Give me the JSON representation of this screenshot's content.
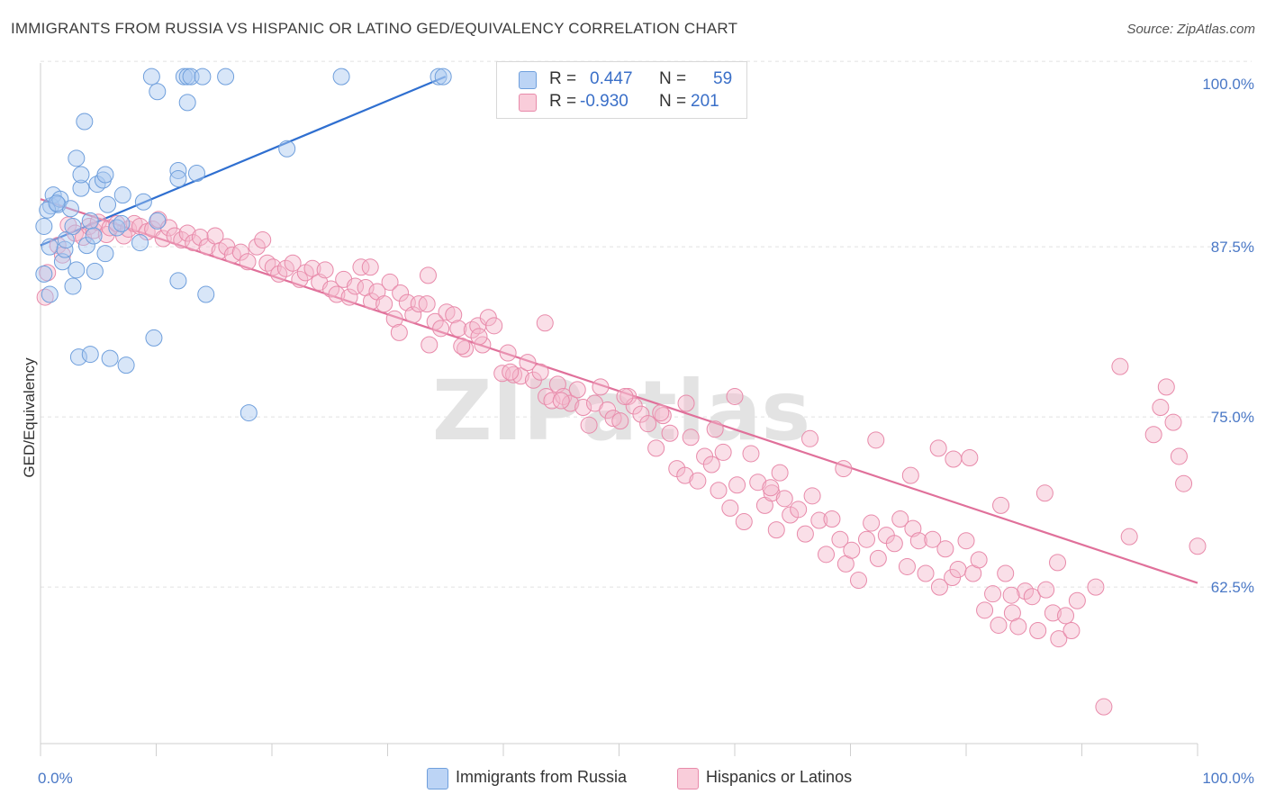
{
  "title": "IMMIGRANTS FROM RUSSIA VS HISPANIC OR LATINO GED/EQUIVALENCY CORRELATION CHART",
  "source": "Source: ZipAtlas.com",
  "watermark": "ZIPatlas",
  "legend": {
    "rows": [
      {
        "r_label": "R =",
        "r_value": "0.447",
        "n_label": "N =",
        "n_value": "59",
        "color": "#a8c8f0"
      },
      {
        "r_label": "R =",
        "r_value": "-0.930",
        "n_label": "N =",
        "n_value": "201",
        "color": "#f5b8cc"
      }
    ]
  },
  "bottom_legend": [
    {
      "label": "Immigrants from Russia",
      "color": "#a8c8f0"
    },
    {
      "label": "Hispanics or Latinos",
      "color": "#f5b8cc"
    }
  ],
  "chart_data": {
    "type": "scatter",
    "ylabel": "GED/Equivalency",
    "xlim": [
      0,
      100
    ],
    "ylim": [
      51,
      101
    ],
    "y_ticks": [
      {
        "value": 100,
        "label": "100.0%"
      },
      {
        "value": 87.5,
        "label": "87.5%"
      },
      {
        "value": 75,
        "label": "75.0%"
      },
      {
        "value": 62.5,
        "label": "62.5%"
      }
    ],
    "x_ticks": [
      {
        "value": 0,
        "label": "0.0%"
      },
      {
        "value": 100,
        "label": "100.0%"
      }
    ],
    "grid": true,
    "series": [
      {
        "name": "Immigrants from Russia",
        "color": "#a8c8f0",
        "stroke": "#6f9fdc",
        "line_color": "#2f6fd0",
        "trend": [
          [
            0,
            87.6
          ],
          [
            35,
            100
          ]
        ],
        "points": [
          [
            0.3,
            89.0
          ],
          [
            0.3,
            85.5
          ],
          [
            0.8,
            84.0
          ],
          [
            0.8,
            87.5
          ],
          [
            0.9,
            90.5
          ],
          [
            1.1,
            91.3
          ],
          [
            1.5,
            90.6
          ],
          [
            1.7,
            91.0
          ],
          [
            1.9,
            86.4
          ],
          [
            2.1,
            87.3
          ],
          [
            2.2,
            88.0
          ],
          [
            2.6,
            90.3
          ],
          [
            2.8,
            89.0
          ],
          [
            2.8,
            84.6
          ],
          [
            3.1,
            85.8
          ],
          [
            3.1,
            94.0
          ],
          [
            3.3,
            79.4
          ],
          [
            3.5,
            91.8
          ],
          [
            3.5,
            92.8
          ],
          [
            3.8,
            96.7
          ],
          [
            4.0,
            87.6
          ],
          [
            4.3,
            79.6
          ],
          [
            4.3,
            89.4
          ],
          [
            4.6,
            88.3
          ],
          [
            4.7,
            85.7
          ],
          [
            4.9,
            92.1
          ],
          [
            5.4,
            92.4
          ],
          [
            5.6,
            92.8
          ],
          [
            5.6,
            87.0
          ],
          [
            5.8,
            90.6
          ],
          [
            6.0,
            79.3
          ],
          [
            6.6,
            88.9
          ],
          [
            7.0,
            89.2
          ],
          [
            7.1,
            91.3
          ],
          [
            7.4,
            78.8
          ],
          [
            8.6,
            87.8
          ],
          [
            8.9,
            90.8
          ],
          [
            9.6,
            100
          ],
          [
            9.8,
            80.8
          ],
          [
            10.1,
            98.9
          ],
          [
            10.1,
            89.4
          ],
          [
            11.9,
            85.0
          ],
          [
            11.9,
            93.1
          ],
          [
            11.9,
            92.5
          ],
          [
            12.4,
            100
          ],
          [
            12.7,
            100
          ],
          [
            12.7,
            98.1
          ],
          [
            13.0,
            100
          ],
          [
            13.5,
            92.9
          ],
          [
            14.0,
            100
          ],
          [
            14.3,
            84.0
          ],
          [
            16.0,
            100
          ],
          [
            18.0,
            75.3
          ],
          [
            21.3,
            94.7
          ],
          [
            26.0,
            100
          ],
          [
            34.4,
            100
          ],
          [
            34.8,
            100
          ],
          [
            0.6,
            90.2
          ],
          [
            1.4,
            90.7
          ]
        ]
      },
      {
        "name": "Hispanics or Latinos",
        "color": "#f5b8cc",
        "stroke": "#e88aaa",
        "line_color": "#e0709a",
        "trend": [
          [
            0,
            91.0
          ],
          [
            100,
            62.8
          ]
        ],
        "points": [
          [
            0.4,
            83.8
          ],
          [
            0.6,
            85.6
          ],
          [
            1.5,
            87.6
          ],
          [
            1.9,
            86.9
          ],
          [
            2.4,
            89.1
          ],
          [
            3.0,
            88.5
          ],
          [
            3.7,
            88.2
          ],
          [
            4.2,
            89.0
          ],
          [
            4.6,
            88.7
          ],
          [
            5.0,
            89.3
          ],
          [
            5.7,
            88.4
          ],
          [
            6.0,
            88.9
          ],
          [
            6.6,
            89.2
          ],
          [
            7.2,
            88.3
          ],
          [
            7.6,
            88.8
          ],
          [
            8.1,
            89.2
          ],
          [
            8.6,
            89.0
          ],
          [
            9.2,
            88.6
          ],
          [
            9.7,
            88.8
          ],
          [
            10.2,
            89.5
          ],
          [
            10.6,
            88.1
          ],
          [
            11.1,
            88.9
          ],
          [
            11.6,
            88.3
          ],
          [
            12.2,
            88.0
          ],
          [
            12.7,
            88.5
          ],
          [
            13.2,
            87.8
          ],
          [
            13.8,
            88.2
          ],
          [
            14.4,
            87.5
          ],
          [
            15.1,
            88.3
          ],
          [
            15.5,
            87.2
          ],
          [
            16.1,
            87.5
          ],
          [
            16.6,
            86.9
          ],
          [
            17.3,
            87.1
          ],
          [
            17.9,
            86.4
          ],
          [
            18.7,
            87.5
          ],
          [
            19.2,
            88.0
          ],
          [
            19.6,
            86.3
          ],
          [
            20.1,
            86.0
          ],
          [
            20.6,
            85.5
          ],
          [
            21.2,
            85.9
          ],
          [
            21.8,
            86.3
          ],
          [
            22.4,
            85.1
          ],
          [
            22.9,
            85.6
          ],
          [
            23.5,
            85.9
          ],
          [
            24.1,
            84.9
          ],
          [
            24.6,
            85.8
          ],
          [
            25.1,
            84.4
          ],
          [
            25.6,
            84.0
          ],
          [
            26.2,
            85.1
          ],
          [
            26.7,
            83.8
          ],
          [
            27.2,
            84.6
          ],
          [
            27.7,
            86.0
          ],
          [
            28.1,
            84.5
          ],
          [
            28.6,
            83.5
          ],
          [
            29.1,
            84.2
          ],
          [
            29.7,
            83.3
          ],
          [
            30.2,
            84.9
          ],
          [
            30.6,
            82.2
          ],
          [
            31.1,
            84.1
          ],
          [
            31.7,
            83.4
          ],
          [
            32.2,
            82.5
          ],
          [
            32.7,
            83.3
          ],
          [
            33.4,
            83.3
          ],
          [
            33.6,
            80.3
          ],
          [
            34.1,
            82.0
          ],
          [
            34.6,
            81.5
          ],
          [
            35.1,
            82.7
          ],
          [
            35.7,
            82.5
          ],
          [
            36.1,
            81.5
          ],
          [
            36.7,
            80.0
          ],
          [
            37.3,
            81.4
          ],
          [
            37.8,
            81.7
          ],
          [
            38.2,
            80.3
          ],
          [
            38.7,
            82.3
          ],
          [
            39.2,
            81.7
          ],
          [
            39.9,
            78.2
          ],
          [
            40.4,
            79.7
          ],
          [
            40.9,
            78.1
          ],
          [
            41.5,
            78.0
          ],
          [
            42.1,
            79.0
          ],
          [
            42.6,
            77.7
          ],
          [
            43.2,
            78.3
          ],
          [
            43.7,
            76.5
          ],
          [
            44.2,
            76.2
          ],
          [
            44.7,
            77.4
          ],
          [
            45.2,
            76.5
          ],
          [
            45.8,
            76.0
          ],
          [
            46.4,
            77.0
          ],
          [
            46.9,
            75.7
          ],
          [
            47.4,
            74.4
          ],
          [
            47.9,
            76.0
          ],
          [
            48.4,
            77.2
          ],
          [
            49.0,
            75.5
          ],
          [
            49.5,
            74.9
          ],
          [
            50.1,
            74.7
          ],
          [
            50.8,
            76.5
          ],
          [
            51.3,
            75.8
          ],
          [
            51.9,
            75.2
          ],
          [
            52.5,
            74.5
          ],
          [
            53.2,
            72.7
          ],
          [
            53.8,
            75.1
          ],
          [
            54.4,
            73.8
          ],
          [
            55.0,
            71.2
          ],
          [
            55.7,
            70.7
          ],
          [
            56.2,
            73.5
          ],
          [
            56.8,
            70.3
          ],
          [
            57.4,
            72.1
          ],
          [
            58.0,
            71.5
          ],
          [
            58.6,
            69.6
          ],
          [
            59.0,
            72.4
          ],
          [
            59.6,
            68.3
          ],
          [
            60.2,
            70.0
          ],
          [
            60.8,
            67.3
          ],
          [
            61.4,
            72.3
          ],
          [
            62.0,
            70.2
          ],
          [
            62.6,
            68.5
          ],
          [
            63.2,
            69.4
          ],
          [
            63.6,
            66.7
          ],
          [
            64.3,
            69.0
          ],
          [
            64.8,
            67.8
          ],
          [
            65.5,
            68.2
          ],
          [
            66.1,
            66.4
          ],
          [
            66.7,
            69.2
          ],
          [
            67.3,
            67.4
          ],
          [
            67.9,
            64.9
          ],
          [
            68.4,
            67.5
          ],
          [
            69.1,
            66.0
          ],
          [
            69.6,
            64.2
          ],
          [
            70.1,
            65.2
          ],
          [
            70.7,
            63.0
          ],
          [
            71.4,
            66.0
          ],
          [
            71.8,
            67.2
          ],
          [
            72.4,
            64.6
          ],
          [
            73.1,
            66.3
          ],
          [
            73.8,
            65.7
          ],
          [
            74.3,
            67.5
          ],
          [
            74.9,
            64.0
          ],
          [
            75.4,
            66.8
          ],
          [
            75.9,
            65.9
          ],
          [
            76.5,
            63.5
          ],
          [
            77.1,
            66.0
          ],
          [
            77.7,
            62.5
          ],
          [
            78.2,
            65.3
          ],
          [
            78.8,
            63.2
          ],
          [
            79.3,
            63.8
          ],
          [
            80.0,
            65.9
          ],
          [
            80.6,
            63.5
          ],
          [
            81.1,
            64.5
          ],
          [
            81.6,
            60.8
          ],
          [
            82.3,
            62.0
          ],
          [
            82.8,
            59.7
          ],
          [
            83.4,
            63.5
          ],
          [
            84.0,
            60.6
          ],
          [
            84.5,
            59.6
          ],
          [
            85.1,
            62.2
          ],
          [
            85.7,
            61.8
          ],
          [
            86.2,
            59.3
          ],
          [
            86.9,
            62.3
          ],
          [
            87.5,
            60.6
          ],
          [
            88.0,
            58.7
          ],
          [
            88.6,
            60.4
          ],
          [
            89.1,
            59.3
          ],
          [
            89.6,
            61.5
          ],
          [
            55.8,
            76.0
          ],
          [
            50.5,
            76.5
          ],
          [
            45.0,
            76.2
          ],
          [
            40.6,
            78.3
          ],
          [
            36.4,
            80.2
          ],
          [
            31.0,
            81.2
          ],
          [
            28.5,
            86.0
          ],
          [
            33.5,
            85.4
          ],
          [
            37.9,
            80.9
          ],
          [
            43.6,
            81.9
          ],
          [
            53.6,
            75.3
          ],
          [
            58.3,
            74.1
          ],
          [
            60.0,
            76.5
          ],
          [
            63.9,
            70.9
          ],
          [
            69.4,
            71.2
          ],
          [
            72.2,
            73.3
          ],
          [
            75.2,
            70.7
          ],
          [
            77.6,
            72.7
          ],
          [
            80.3,
            72.0
          ],
          [
            83.0,
            68.5
          ],
          [
            87.9,
            64.3
          ],
          [
            93.3,
            78.7
          ],
          [
            94.1,
            66.2
          ],
          [
            96.2,
            73.7
          ],
          [
            96.8,
            75.7
          ],
          [
            97.3,
            77.2
          ],
          [
            97.9,
            74.6
          ],
          [
            98.4,
            72.1
          ],
          [
            98.8,
            70.1
          ],
          [
            100,
            65.5
          ],
          [
            63.1,
            69.8
          ],
          [
            66.5,
            73.4
          ],
          [
            78.9,
            71.9
          ],
          [
            83.9,
            61.9
          ],
          [
            86.8,
            69.4
          ],
          [
            91.2,
            62.5
          ],
          [
            91.9,
            53.7
          ]
        ]
      }
    ]
  }
}
